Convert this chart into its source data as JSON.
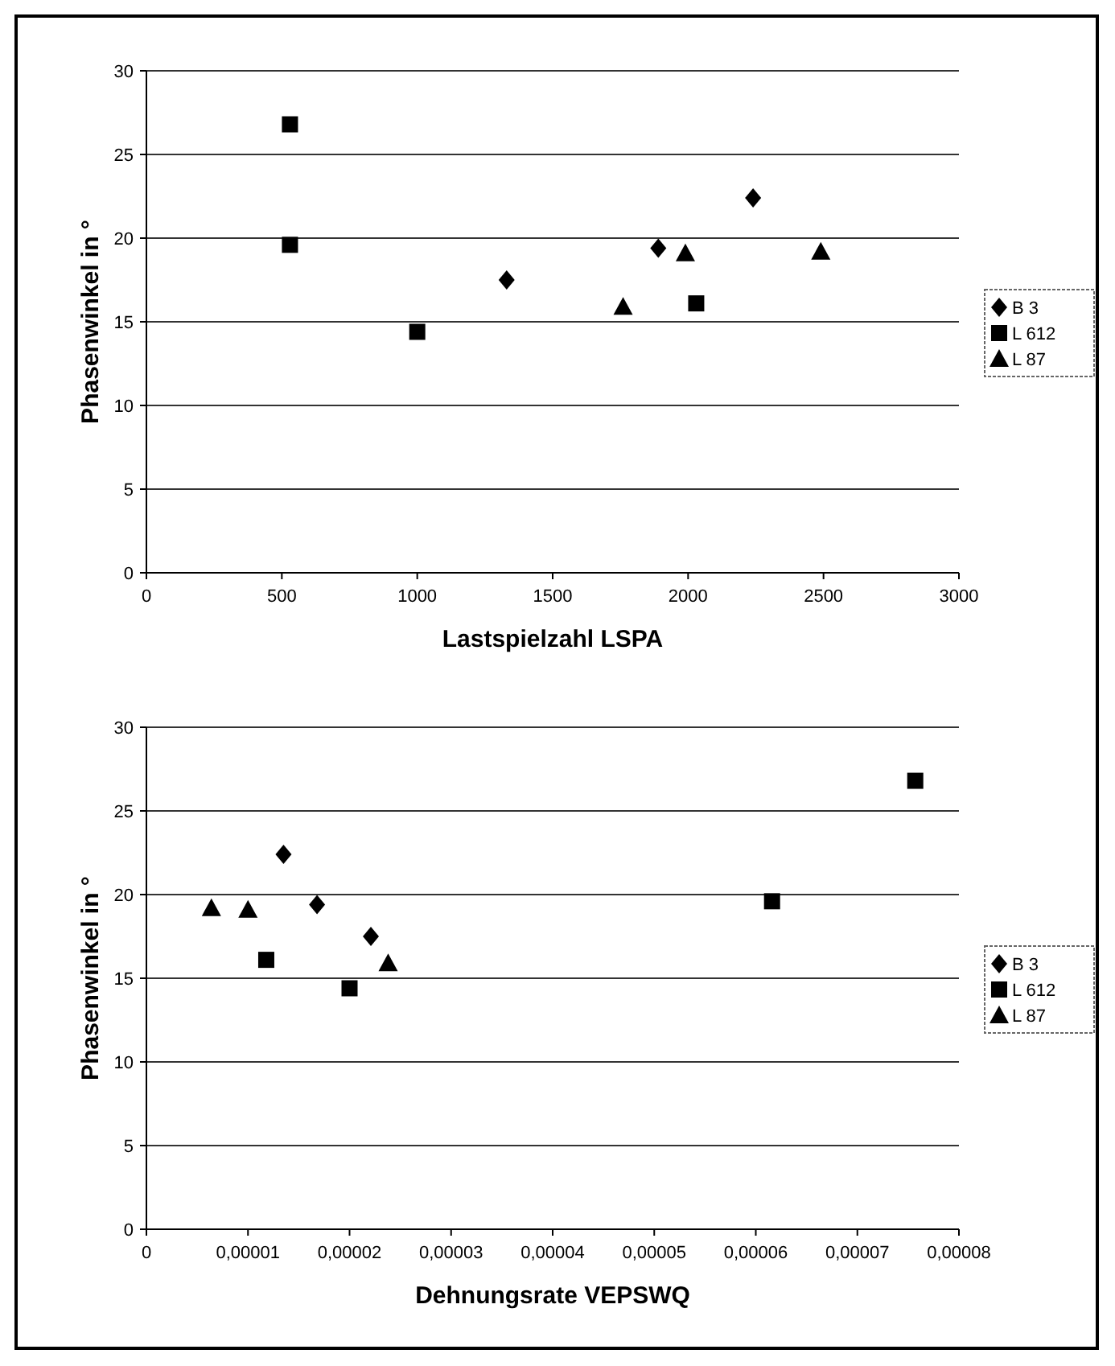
{
  "chart_data": [
    {
      "type": "scatter",
      "xlabel": "Lastspielzahl LSPA",
      "ylabel": "Phasenwinkel in °",
      "xlim": [
        0,
        3000
      ],
      "xticks": [
        0,
        500,
        1000,
        1500,
        2000,
        2500,
        3000
      ],
      "ylim": [
        0,
        30
      ],
      "yticks": [
        0,
        5,
        10,
        15,
        20,
        25,
        30
      ],
      "grid": "y",
      "legend": "right",
      "series": [
        {
          "name": "B 3",
          "color": "#000000",
          "marker": "diamond",
          "x": [
            1330,
            1890,
            2240
          ],
          "values": [
            17.5,
            19.4,
            22.4
          ]
        },
        {
          "name": "L 612",
          "color": "#000000",
          "marker": "square",
          "x": [
            530,
            530,
            1000,
            2030
          ],
          "values": [
            26.8,
            19.6,
            14.4,
            16.1
          ]
        },
        {
          "name": "L 87",
          "color": "#000000",
          "marker": "triangle",
          "x": [
            1760,
            1990,
            2490
          ],
          "values": [
            15.9,
            19.1,
            19.2
          ]
        }
      ]
    },
    {
      "type": "scatter",
      "xlabel": "Dehnungsrate VEPSWQ",
      "ylabel": "Phasenwinkel in °",
      "xlim": [
        0,
        8e-05
      ],
      "xticks": [
        0,
        {
          "value": 1e-05,
          "label": "0,00001"
        },
        {
          "value": 2e-05,
          "label": "0,00002"
        },
        {
          "value": 3e-05,
          "label": "0,00003"
        },
        {
          "value": 4e-05,
          "label": "0,00004"
        },
        {
          "value": 5e-05,
          "label": "0,00005"
        },
        {
          "value": 6e-05,
          "label": "0,00006"
        },
        {
          "value": 7e-05,
          "label": "0,00007"
        },
        {
          "value": 8e-05,
          "label": "0,00008"
        }
      ],
      "ylim": [
        0,
        30
      ],
      "yticks": [
        0,
        5,
        10,
        15,
        20,
        25,
        30
      ],
      "grid": "y",
      "legend": "right",
      "series": [
        {
          "name": "B 3",
          "color": "#000000",
          "marker": "diamond",
          "x": [
            1.35e-05,
            1.68e-05,
            2.21e-05
          ],
          "values": [
            22.4,
            19.4,
            17.5
          ]
        },
        {
          "name": "L 612",
          "color": "#000000",
          "marker": "square",
          "x": [
            1.18e-05,
            2e-05,
            6.16e-05,
            7.57e-05
          ],
          "values": [
            16.1,
            14.4,
            19.6,
            26.8
          ]
        },
        {
          "name": "L 87",
          "color": "#000000",
          "marker": "triangle",
          "x": [
            6.4e-06,
            1e-05,
            2.38e-05
          ],
          "values": [
            19.2,
            19.1,
            15.9
          ]
        }
      ]
    }
  ]
}
